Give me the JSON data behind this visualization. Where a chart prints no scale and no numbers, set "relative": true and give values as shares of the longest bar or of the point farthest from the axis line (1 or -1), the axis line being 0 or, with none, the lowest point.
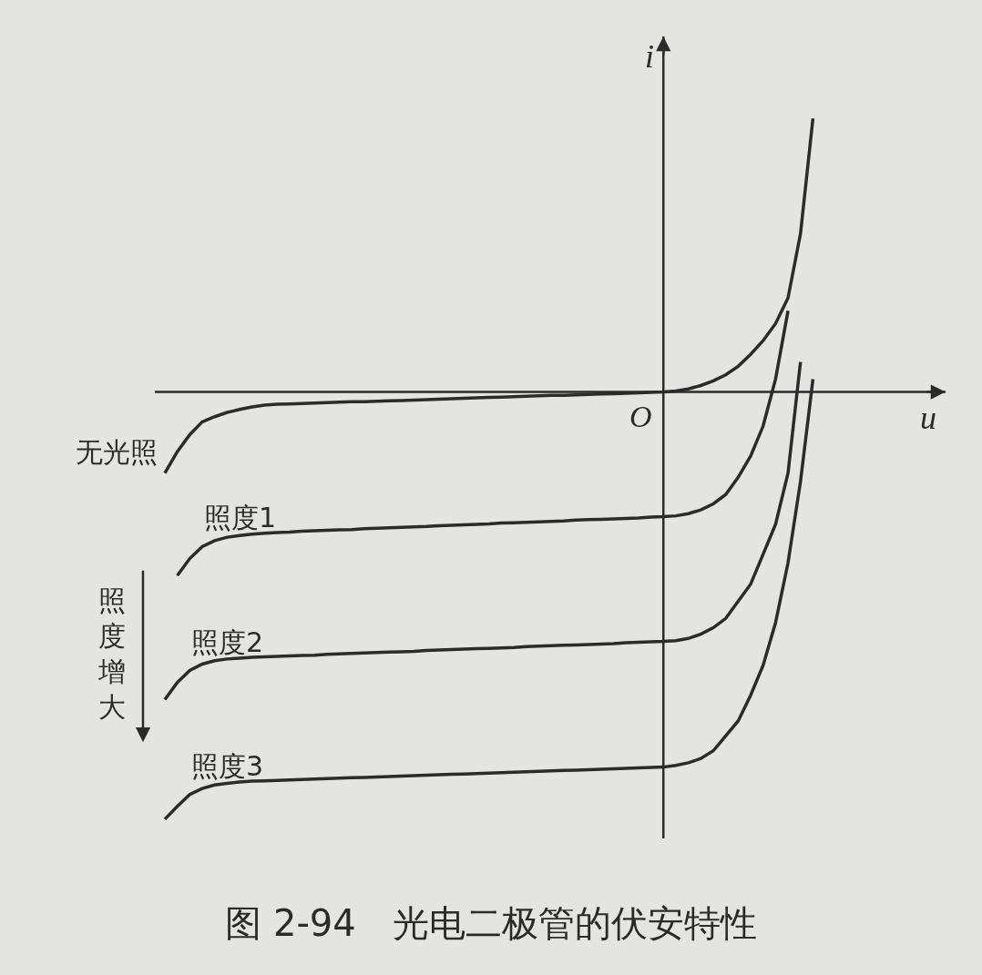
{
  "chart_data": {
    "type": "line",
    "relative": true,
    "title": "图 2-94　光电二极管的伏安特性",
    "xlabel": "u",
    "ylabel": "i",
    "categories": [
      null,
      null,
      null,
      null,
      null,
      null,
      null,
      null,
      null,
      null,
      null,
      null,
      null,
      null,
      null,
      null,
      null,
      null,
      null,
      null,
      null,
      null,
      null,
      null,
      null,
      null,
      null,
      null,
      null,
      null,
      null,
      null,
      null,
      null,
      null,
      null,
      null,
      null,
      null,
      null,
      null,
      null,
      null,
      null,
      null,
      null,
      null,
      null,
      null,
      null,
      null,
      null,
      null,
      null
    ],
    "annotations": [
      {
        "text": "O",
        "y": 0
      },
      "照度增大"
    ],
    "series": [
      {
        "name": "无光照",
        "color": "#2b2b2b",
        "values": [
          -0.19,
          -0.14,
          -0.1,
          -0.07,
          -0.058,
          -0.048,
          -0.041,
          -0.035,
          -0.031,
          -0.029,
          -0.028,
          -0.027,
          -0.026,
          -0.025,
          -0.024,
          -0.023,
          -0.023,
          -0.022,
          -0.021,
          -0.02,
          -0.019,
          -0.018,
          -0.017,
          -0.016,
          -0.015,
          -0.014,
          -0.013,
          -0.012,
          -0.011,
          -0.01,
          -0.009,
          -0.008,
          -0.008,
          -0.007,
          -0.006,
          -0.005,
          -0.004,
          -0.003,
          -0.002,
          -0.001,
          0,
          0.002,
          0.007,
          0.015,
          0.026,
          0.04,
          0.06,
          0.088,
          0.12,
          0.16,
          0.22,
          0.37,
          0.64,
          null
        ]
      },
      {
        "name": "照度1",
        "color": "#2b2b2b",
        "values": [
          null,
          -0.43,
          -0.39,
          -0.362,
          -0.348,
          -0.34,
          -0.336,
          -0.333,
          -0.331,
          -0.329,
          -0.328,
          -0.326,
          -0.325,
          -0.324,
          -0.323,
          -0.322,
          -0.32,
          -0.319,
          -0.318,
          -0.317,
          -0.316,
          -0.315,
          -0.313,
          -0.312,
          -0.311,
          -0.31,
          -0.309,
          -0.307,
          -0.306,
          -0.305,
          -0.304,
          -0.303,
          -0.302,
          -0.3,
          -0.299,
          -0.298,
          -0.297,
          -0.296,
          -0.295,
          -0.293,
          -0.292,
          -0.29,
          -0.285,
          -0.276,
          -0.262,
          -0.24,
          -0.2,
          -0.15,
          -0.08,
          0.03,
          0.19,
          null,
          null,
          null
        ]
      },
      {
        "name": "照度2",
        "color": "#2b2b2b",
        "values": [
          -0.72,
          -0.68,
          -0.652,
          -0.637,
          -0.629,
          -0.625,
          -0.623,
          -0.621,
          -0.62,
          -0.619,
          -0.618,
          -0.617,
          -0.616,
          -0.614,
          -0.613,
          -0.612,
          -0.611,
          -0.61,
          -0.609,
          -0.608,
          -0.607,
          -0.605,
          -0.604,
          -0.603,
          -0.602,
          -0.601,
          -0.6,
          -0.599,
          -0.598,
          -0.596,
          -0.595,
          -0.594,
          -0.593,
          -0.592,
          -0.591,
          -0.59,
          -0.589,
          -0.587,
          -0.586,
          -0.585,
          -0.584,
          -0.582,
          -0.577,
          -0.567,
          -0.552,
          -0.53,
          -0.49,
          -0.45,
          -0.38,
          -0.31,
          -0.19,
          0.07,
          null,
          null
        ]
      },
      {
        "name": "照度3",
        "color": "#2b2b2b",
        "values": [
          -1.0,
          -0.97,
          -0.942,
          -0.928,
          -0.92,
          -0.916,
          -0.913,
          -0.911,
          -0.91,
          -0.909,
          -0.908,
          -0.907,
          -0.906,
          -0.905,
          -0.904,
          -0.903,
          -0.902,
          -0.901,
          -0.9,
          -0.899,
          -0.898,
          -0.897,
          -0.896,
          -0.895,
          -0.894,
          -0.893,
          -0.892,
          -0.891,
          -0.89,
          -0.889,
          -0.888,
          -0.887,
          -0.886,
          -0.885,
          -0.884,
          -0.883,
          -0.882,
          -0.881,
          -0.88,
          -0.879,
          -0.878,
          -0.874,
          -0.868,
          -0.858,
          -0.84,
          -0.805,
          -0.77,
          -0.71,
          -0.64,
          -0.54,
          -0.4,
          -0.21,
          0.03,
          null
        ]
      }
    ]
  }
}
